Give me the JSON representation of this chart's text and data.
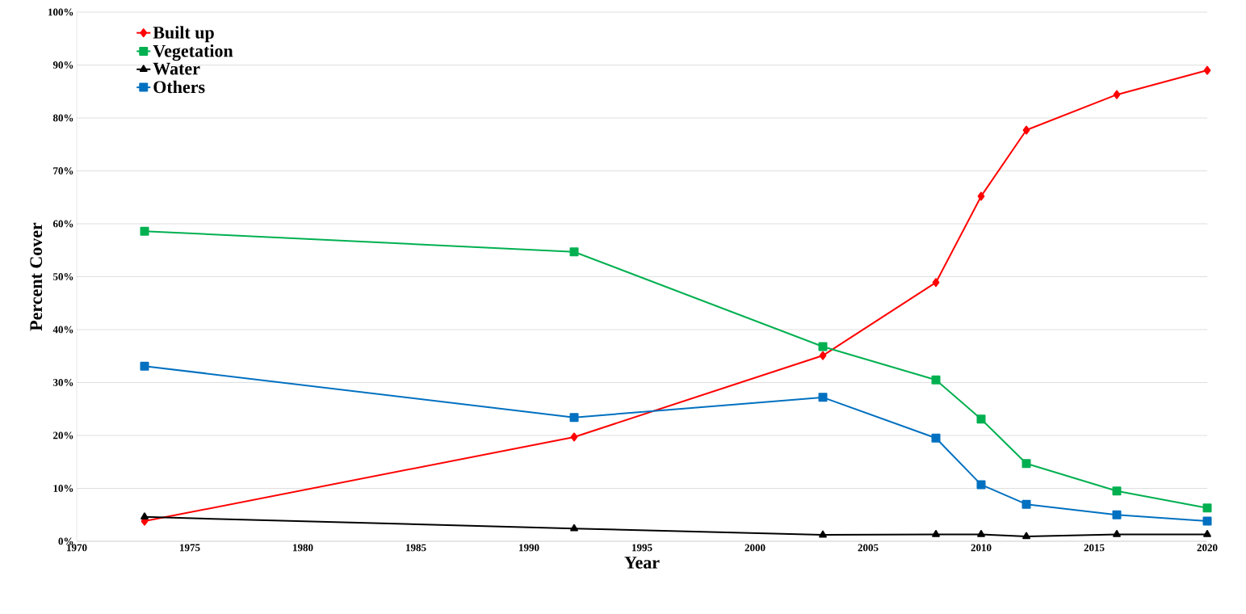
{
  "chart_data": {
    "type": "line",
    "xlabel": "Year",
    "ylabel": "Percent Cover",
    "x": [
      1973,
      1992,
      2003,
      2008,
      2010,
      2012,
      2016,
      2020
    ],
    "series": [
      {
        "name": "Built up",
        "color": "#ff0000",
        "marker": "diamond",
        "values": [
          3.8,
          19.7,
          35.1,
          48.9,
          65.2,
          77.7,
          84.4,
          89.0
        ]
      },
      {
        "name": "Vegetation",
        "color": "#00b050",
        "marker": "square",
        "values": [
          58.6,
          54.7,
          36.8,
          30.5,
          23.1,
          14.7,
          9.5,
          6.3
        ]
      },
      {
        "name": "Water",
        "color": "#000000",
        "marker": "triangle",
        "values": [
          4.6,
          2.4,
          1.2,
          1.3,
          1.3,
          0.9,
          1.3,
          1.3
        ]
      },
      {
        "name": "Others",
        "color": "#0070c0",
        "marker": "square",
        "values": [
          33.1,
          23.4,
          27.2,
          19.5,
          10.7,
          7.0,
          5.0,
          3.8
        ]
      }
    ],
    "xlim": [
      1970,
      2020
    ],
    "xticks": [
      1970,
      1975,
      1980,
      1985,
      1990,
      1995,
      2000,
      2005,
      2010,
      2015,
      2020
    ],
    "ylim": [
      0,
      100
    ],
    "yticks": [
      {
        "value": 0,
        "label": "0%"
      },
      {
        "value": 10,
        "label": "10%"
      },
      {
        "value": 20,
        "label": "20%"
      },
      {
        "value": 30,
        "label": "30%"
      },
      {
        "value": 40,
        "label": "40%"
      },
      {
        "value": 50,
        "label": "50%"
      },
      {
        "value": 60,
        "label": "60%"
      },
      {
        "value": 70,
        "label": "70%"
      },
      {
        "value": 80,
        "label": "80%"
      },
      {
        "value": 90,
        "label": "90%"
      },
      {
        "value": 100,
        "label": "100%"
      }
    ],
    "grid": "y",
    "legend": "top left",
    "line_style": "solid"
  }
}
